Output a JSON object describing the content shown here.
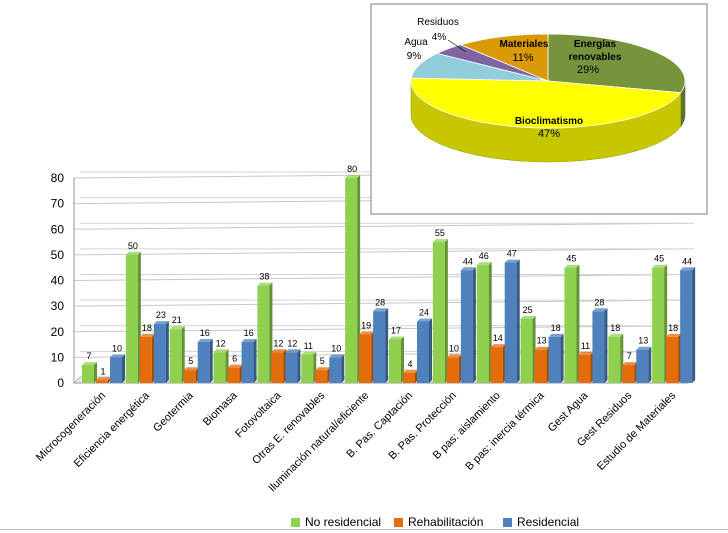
{
  "colors": {
    "no_residencial": "#8fd14f",
    "rehabilitacion": "#e46c0a",
    "residencial": "#4f81bd",
    "pie": {
      "Energías renovables": "#77933c",
      "Bioclimatismo": "#ffff00",
      "Agua": "#92cddc",
      "Residuos": "#8064a2",
      "Materiales": "#d99a06"
    }
  },
  "chart_data": [
    {
      "type": "bar",
      "categories": [
        "Microcogeneración",
        "Eficiencia energética",
        "Geotermia",
        "Biomasa",
        "Fotovoltaica",
        "Otras E. renovables",
        "Iluminación natural/eficiente",
        "B. Pas. Captación",
        "B. Pas. Protección",
        "B pas: aislamiento",
        "B pas: inercia térmica",
        "Gest Agua",
        "Gest Residuos",
        "Estudio de Materiales"
      ],
      "series": [
        {
          "name": "No residencial",
          "values": [
            7,
            50,
            21,
            12,
            38,
            11,
            80,
            17,
            55,
            46,
            25,
            45,
            18,
            45
          ]
        },
        {
          "name": "Rehabilitación",
          "values": [
            1,
            18,
            5,
            6,
            12,
            5,
            19,
            4,
            10,
            14,
            13,
            11,
            7,
            18
          ]
        },
        {
          "name": "Residencial",
          "values": [
            10,
            23,
            16,
            16,
            12,
            10,
            28,
            24,
            44,
            47,
            18,
            28,
            13,
            44
          ]
        }
      ],
      "yticks": [
        "0",
        "10",
        "20",
        "30",
        "40",
        "50",
        "60",
        "70",
        "80"
      ],
      "ylim": [
        0,
        80
      ],
      "legend_position": "bottom",
      "three_d": true
    },
    {
      "type": "pie",
      "three_d": true,
      "slices": [
        {
          "label": "Energías renovables",
          "value": 29,
          "value_label": "29%"
        },
        {
          "label": "Bioclimatismo",
          "value": 47,
          "value_label": "47%"
        },
        {
          "label": "Agua",
          "value": 9,
          "value_label": "9%"
        },
        {
          "label": "Residuos",
          "value": 4,
          "value_label": "4%"
        },
        {
          "label": "Materiales",
          "value": 11,
          "value_label": "11%"
        }
      ]
    }
  ]
}
